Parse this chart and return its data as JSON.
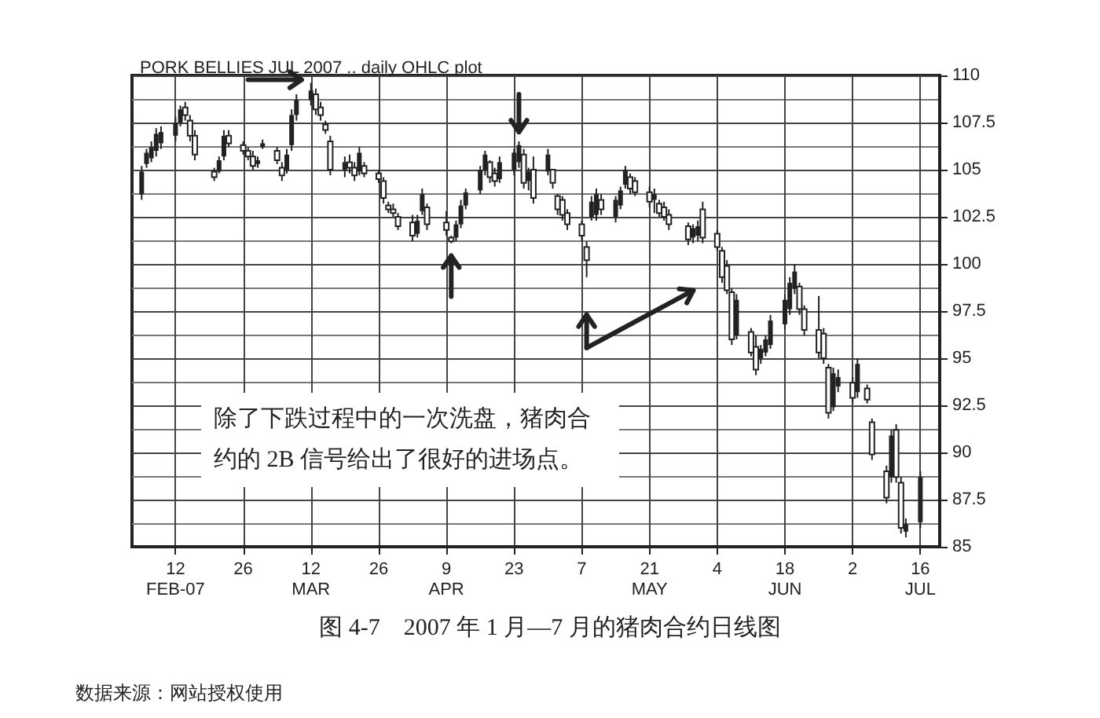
{
  "chart_data": {
    "type": "candlestick",
    "title": "PORK BELLIES JUL 2007 .. daily OHLC plot",
    "color": "#222222",
    "grid": true,
    "annotations": [
      "除了下跌过程中的一次洗盘，猪肉合约的 2B 信号给出了很好的进场点。",
      "图 4-7　2007 年 1 月—7 月的猪肉合约日线图",
      "数据来源：网站授权使用"
    ],
    "xlim": [
      "2007-02-03",
      "2007-07-20"
    ],
    "xticks": [
      {
        "value": "2007-02-12",
        "label": "12\nFEB-07"
      },
      {
        "value": "2007-02-26",
        "label": "26"
      },
      {
        "value": "2007-03-12",
        "label": "12\nMAR"
      },
      {
        "value": "2007-03-26",
        "label": "26"
      },
      {
        "value": "2007-04-09",
        "label": "9\nAPR"
      },
      {
        "value": "2007-04-23",
        "label": "23"
      },
      {
        "value": "2007-05-07",
        "label": "7"
      },
      {
        "value": "2007-05-21",
        "label": "21\nMAY"
      },
      {
        "value": "2007-06-04",
        "label": "4"
      },
      {
        "value": "2007-06-18",
        "label": "18\nJUN"
      },
      {
        "value": "2007-07-02",
        "label": "2"
      },
      {
        "value": "2007-07-16",
        "label": "16\nJUL"
      }
    ],
    "ylim": [
      85,
      110
    ],
    "yticks": [
      85,
      87.5,
      90,
      92.5,
      95,
      97.5,
      100,
      102.5,
      105,
      107.5,
      110
    ],
    "x": [
      "2007-02-05",
      "2007-02-06",
      "2007-02-07",
      "2007-02-08",
      "2007-02-09",
      "2007-02-12",
      "2007-02-13",
      "2007-02-14",
      "2007-02-15",
      "2007-02-16",
      "2007-02-20",
      "2007-02-21",
      "2007-02-22",
      "2007-02-23",
      "2007-02-26",
      "2007-02-27",
      "2007-02-28",
      "2007-03-01",
      "2007-03-02",
      "2007-03-05",
      "2007-03-06",
      "2007-03-07",
      "2007-03-08",
      "2007-03-09",
      "2007-03-12",
      "2007-03-13",
      "2007-03-14",
      "2007-03-15",
      "2007-03-16",
      "2007-03-19",
      "2007-03-20",
      "2007-03-21",
      "2007-03-22",
      "2007-03-23",
      "2007-03-26",
      "2007-03-27",
      "2007-03-28",
      "2007-03-29",
      "2007-03-30",
      "2007-04-02",
      "2007-04-03",
      "2007-04-04",
      "2007-04-05",
      "2007-04-09",
      "2007-04-10",
      "2007-04-11",
      "2007-04-12",
      "2007-04-13",
      "2007-04-16",
      "2007-04-17",
      "2007-04-18",
      "2007-04-19",
      "2007-04-20",
      "2007-04-23",
      "2007-04-24",
      "2007-04-25",
      "2007-04-26",
      "2007-04-27",
      "2007-04-30",
      "2007-05-01",
      "2007-05-02",
      "2007-05-03",
      "2007-05-04",
      "2007-05-07",
      "2007-05-08",
      "2007-05-09",
      "2007-05-10",
      "2007-05-11",
      "2007-05-14",
      "2007-05-15",
      "2007-05-16",
      "2007-05-17",
      "2007-05-18",
      "2007-05-21",
      "2007-05-22",
      "2007-05-23",
      "2007-05-24",
      "2007-05-25",
      "2007-05-29",
      "2007-05-30",
      "2007-05-31",
      "2007-06-01",
      "2007-06-04",
      "2007-06-05",
      "2007-06-06",
      "2007-06-07",
      "2007-06-08",
      "2007-06-11",
      "2007-06-12",
      "2007-06-13",
      "2007-06-14",
      "2007-06-15",
      "2007-06-18",
      "2007-06-19",
      "2007-06-20",
      "2007-06-21",
      "2007-06-22",
      "2007-06-25",
      "2007-06-26",
      "2007-06-27",
      "2007-06-28",
      "2007-06-29",
      "2007-07-02",
      "2007-07-03",
      "2007-07-05",
      "2007-07-06",
      "2007-07-09",
      "2007-07-10",
      "2007-07-11",
      "2007-07-12",
      "2007-07-13",
      "2007-07-16"
    ],
    "ohlc": [
      [
        103.7,
        105.2,
        103.4,
        104.9
      ],
      [
        105.3,
        106.1,
        105.1,
        105.9
      ],
      [
        105.6,
        106.5,
        105.4,
        106.2
      ],
      [
        106,
        107.2,
        105.7,
        106.9
      ],
      [
        106.4,
        107.3,
        106.1,
        107
      ],
      [
        106.8,
        107.8,
        106.5,
        107.5
      ],
      [
        107.5,
        108.4,
        107.3,
        108.2
      ],
      [
        108.3,
        108.6,
        107.6,
        107.9
      ],
      [
        107.6,
        107.9,
        106.5,
        106.8
      ],
      [
        106.8,
        107.1,
        105.5,
        105.8
      ],
      [
        104.9,
        105.1,
        104.4,
        104.6
      ],
      [
        104.9,
        105.7,
        104.8,
        105.5
      ],
      [
        105.7,
        107.1,
        105.5,
        106.8
      ],
      [
        106.8,
        107.1,
        106.2,
        106.4
      ],
      [
        106.3,
        106.5,
        105.8,
        106
      ],
      [
        106,
        106.2,
        105.5,
        105.7
      ],
      [
        105.7,
        106,
        105,
        105.2
      ],
      [
        105.3,
        105.7,
        105.1,
        105.5
      ],
      [
        106.2,
        106.6,
        106.1,
        106.4
      ],
      [
        106,
        106.2,
        105.3,
        105.5
      ],
      [
        105.1,
        105.4,
        104.4,
        104.7
      ],
      [
        105,
        106.1,
        104.8,
        105.8
      ],
      [
        106.3,
        108.2,
        106,
        107.9
      ],
      [
        107.9,
        109,
        107.6,
        108.7
      ],
      [
        108.7,
        109.6,
        108.4,
        109.2
      ],
      [
        109,
        109.3,
        107.9,
        108.2
      ],
      [
        108.3,
        108.6,
        107.6,
        107.9
      ],
      [
        107.4,
        107.6,
        106.9,
        107.1
      ],
      [
        106.5,
        106.8,
        104.7,
        105
      ],
      [
        105,
        105.7,
        104.6,
        105.4
      ],
      [
        105.4,
        105.8,
        104.8,
        105.1
      ],
      [
        105.1,
        105.4,
        104.4,
        104.7
      ],
      [
        104.9,
        106.2,
        104.7,
        105.9
      ],
      [
        105.2,
        105.4,
        104.6,
        104.8
      ],
      [
        104.8,
        105,
        104.3,
        104.5
      ],
      [
        104.4,
        104.6,
        103.2,
        103.5
      ],
      [
        103.1,
        103.3,
        102.7,
        102.9
      ],
      [
        102.9,
        103.2,
        102.5,
        102.7
      ],
      [
        102.5,
        102.7,
        101.8,
        102
      ],
      [
        102.2,
        102.6,
        101.2,
        101.5
      ],
      [
        101.6,
        102.6,
        101.4,
        102.3
      ],
      [
        102.8,
        104,
        102.6,
        103.7
      ],
      [
        103,
        103.2,
        101.8,
        102.1
      ],
      [
        102.2,
        102.8,
        101.5,
        101.8
      ],
      [
        101.4,
        101.5,
        101.1,
        101.2
      ],
      [
        101.4,
        102.3,
        101.2,
        102.1
      ],
      [
        102.1,
        103.4,
        101.9,
        103.1
      ],
      [
        103.1,
        104,
        102.9,
        103.8
      ],
      [
        103.9,
        105.2,
        103.7,
        105
      ],
      [
        105,
        106,
        104.7,
        105.8
      ],
      [
        105.4,
        105.5,
        104.3,
        104.6
      ],
      [
        104.8,
        105.1,
        104.1,
        104.4
      ],
      [
        104.5,
        105.7,
        104.3,
        105.4
      ],
      [
        105,
        106.1,
        104.7,
        105.9
      ],
      [
        105.4,
        106.5,
        105.1,
        106.3
      ],
      [
        105.8,
        106.1,
        104,
        104.3
      ],
      [
        104.4,
        105.1,
        103.9,
        104.9
      ],
      [
        105,
        105.7,
        103.2,
        103.5
      ],
      [
        104.9,
        106.1,
        104.7,
        105.8
      ],
      [
        105,
        105,
        104,
        104.3
      ],
      [
        103.6,
        103.7,
        102.6,
        102.9
      ],
      [
        103.4,
        103.6,
        102.3,
        102.6
      ],
      [
        102.7,
        102.9,
        101.8,
        102.1
      ],
      [
        102.1,
        102.3,
        101.2,
        101.5
      ],
      [
        100.9,
        101.2,
        99.3,
        100.2
      ],
      [
        102.5,
        103.6,
        102.3,
        103.3
      ],
      [
        102.6,
        104,
        102.3,
        103.7
      ],
      [
        103.4,
        103.7,
        102.6,
        102.9
      ],
      [
        102.5,
        103.6,
        102.2,
        103.4
      ],
      [
        103.1,
        104.1,
        102.9,
        103.9
      ],
      [
        104.2,
        105.2,
        104,
        105
      ],
      [
        104.6,
        104.8,
        103.7,
        104
      ],
      [
        104.4,
        104.6,
        103.6,
        103.8
      ],
      [
        103.8,
        104.1,
        103,
        103.3
      ],
      [
        103.4,
        104,
        102.7,
        103.7
      ],
      [
        103.2,
        103.4,
        102.5,
        102.7
      ],
      [
        103,
        103.3,
        102.3,
        102.5
      ],
      [
        102.6,
        102.9,
        101.8,
        102.1
      ],
      [
        102,
        102.2,
        101,
        101.3
      ],
      [
        101.4,
        102.1,
        101.1,
        101.9
      ],
      [
        101.5,
        102.3,
        101.2,
        102
      ],
      [
        102.9,
        103.3,
        101.1,
        101.4
      ],
      [
        101.6,
        101.8,
        100.7,
        100.9
      ],
      [
        100.7,
        100.9,
        99,
        99.3
      ],
      [
        99.9,
        100.2,
        98.4,
        98.6
      ],
      [
        98.5,
        98.7,
        95.7,
        96
      ],
      [
        96.2,
        98.4,
        96,
        98.1
      ],
      [
        96.4,
        96.6,
        95.1,
        95.3
      ],
      [
        95.6,
        96.2,
        94.1,
        94.4
      ],
      [
        95,
        95.7,
        94.7,
        95.5
      ],
      [
        95.3,
        96.2,
        95.1,
        96
      ],
      [
        95.7,
        97.3,
        95.5,
        97
      ],
      [
        96.8,
        98.4,
        96.5,
        98.1
      ],
      [
        97.6,
        99.3,
        97.3,
        99
      ],
      [
        98.7,
        100,
        98.4,
        99.6
      ],
      [
        98.8,
        99,
        97.3,
        97.6
      ],
      [
        97.6,
        97.8,
        96.2,
        96.5
      ],
      [
        96.5,
        98.3,
        95,
        95.3
      ],
      [
        96.3,
        96.6,
        94.7,
        95
      ],
      [
        94.5,
        94.7,
        91.8,
        92.1
      ],
      [
        92.4,
        94.5,
        92.2,
        94.2
      ],
      [
        93.5,
        94.4,
        93.2,
        94
      ],
      [
        93.7,
        94,
        92.6,
        92.9
      ],
      [
        93.2,
        95,
        92.9,
        94.7
      ],
      [
        93.4,
        93.6,
        92.6,
        92.8
      ],
      [
        91.6,
        91.8,
        89.6,
        89.9
      ],
      [
        89,
        89.3,
        87.3,
        87.6
      ],
      [
        88.7,
        91.2,
        88.4,
        90.9
      ],
      [
        91.2,
        91.5,
        88.4,
        88.7
      ],
      [
        88.4,
        88.7,
        85.7,
        86
      ],
      [
        85.8,
        86.5,
        85.5,
        86.2
      ],
      [
        86.3,
        89,
        86,
        88.7
      ]
    ]
  }
}
